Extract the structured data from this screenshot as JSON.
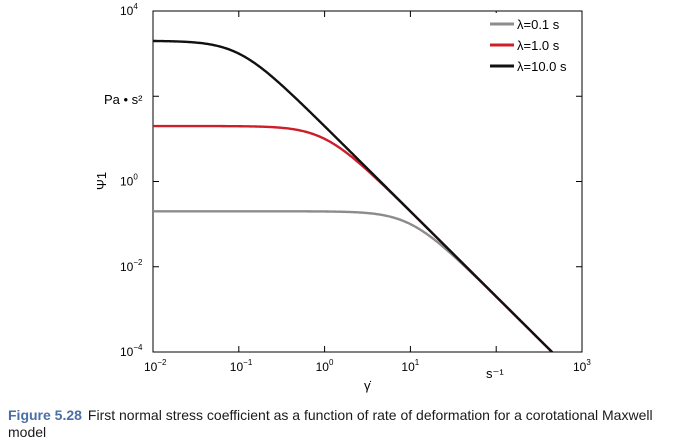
{
  "chart_data": {
    "type": "line",
    "title": "",
    "xscale": "log",
    "yscale": "log",
    "xlim": [
      0.01,
      1000
    ],
    "ylim": [
      0.0001,
      10000
    ],
    "xlabel": "γ̇",
    "ylabel": "Ψ1",
    "units": {
      "y": "Pa • s²",
      "x": "s⁻¹"
    },
    "x_ticks": [
      {
        "base": "10",
        "exp": "−2"
      },
      {
        "base": "10",
        "exp": "−1"
      },
      {
        "base": "10",
        "exp": "0"
      },
      {
        "base": "10",
        "exp": "1"
      },
      {
        "base": "",
        "exp": ""
      },
      {
        "base": "10",
        "exp": "3"
      }
    ],
    "y_ticks": [
      {
        "base": "10",
        "exp": "−4"
      },
      {
        "base": "10",
        "exp": "−2"
      },
      {
        "base": "10",
        "exp": "0"
      },
      {
        "base": "",
        "exp": ""
      },
      {
        "base": "10",
        "exp": "4"
      }
    ],
    "grid": false,
    "legend_position": "top-right",
    "series": [
      {
        "name": "λ=0.1 s",
        "color": "#8c8c8c",
        "lambda": 0.1,
        "plateau": 0.2
      },
      {
        "name": "λ=1.0 s",
        "color": "#cc1f2a",
        "lambda": 1.0,
        "plateau": 20
      },
      {
        "name": "λ=10.0 s",
        "color": "#111111",
        "lambda": 10.0,
        "plateau": 2000
      }
    ]
  },
  "caption": {
    "label": "Figure 5.28",
    "text": "First normal stress coefficient as a function of rate of deformation for a corotational Maxwell model"
  }
}
